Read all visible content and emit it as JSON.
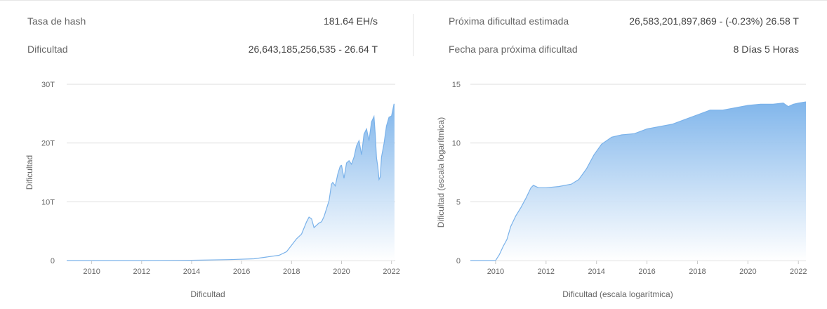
{
  "stats": {
    "hash_rate": {
      "label": "Tasa de hash",
      "value": "181.64 EH/s"
    },
    "difficulty": {
      "label": "Dificultad",
      "value": "26,643,185,256,535 - 26.64 T"
    },
    "next_difficulty": {
      "label": "Próxima dificultad estimada",
      "value": "26,583,201,897,869 - (-0.23%) 26.58 T"
    },
    "next_date": {
      "label": "Fecha para próxima dificultad",
      "value": "8 Días 5 Horas"
    }
  },
  "colors": {
    "area_top": "#7ab2ea",
    "area_bottom": "#ffffff",
    "line": "#7ab2ea",
    "grid": "#dddddd"
  },
  "chart_data": [
    {
      "type": "area",
      "title": "",
      "xlabel": "Dificultad",
      "ylabel": "Dificultad",
      "xlim": [
        2009.0,
        2022.15
      ],
      "ylim": [
        0,
        30
      ],
      "x_ticks": [
        "2010",
        "2012",
        "2014",
        "2016",
        "2018",
        "2020",
        "2022"
      ],
      "y_ticks": [
        "0",
        "10T",
        "20T",
        "30T"
      ],
      "y_tick_values": [
        0,
        10,
        20,
        30
      ],
      "grid": true,
      "x": [
        2009.0,
        2012.0,
        2014.0,
        2015.5,
        2016.5,
        2017.0,
        2017.5,
        2017.8,
        2018.0,
        2018.2,
        2018.4,
        2018.6,
        2018.7,
        2018.8,
        2018.9,
        2019.0,
        2019.1,
        2019.2,
        2019.3,
        2019.5,
        2019.6,
        2019.65,
        2019.75,
        2019.85,
        2019.95,
        2020.0,
        2020.1,
        2020.2,
        2020.3,
        2020.4,
        2020.5,
        2020.6,
        2020.7,
        2020.8,
        2020.9,
        2021.0,
        2021.1,
        2021.2,
        2021.3,
        2021.35,
        2021.4,
        2021.45,
        2021.5,
        2021.55,
        2021.6,
        2021.7,
        2021.8,
        2021.9,
        2022.0,
        2022.1,
        2022.12
      ],
      "series": [
        {
          "values": [
            0,
            0,
            0.05,
            0.15,
            0.3,
            0.6,
            0.9,
            1.5,
            2.6,
            3.7,
            4.5,
            6.6,
            7.4,
            7.1,
            5.6,
            6.0,
            6.4,
            6.6,
            7.5,
            10.2,
            13.0,
            13.3,
            12.7,
            14.7,
            16.1,
            16.2,
            14.0,
            16.6,
            17.0,
            16.4,
            17.6,
            19.5,
            20.4,
            18.0,
            21.5,
            22.4,
            20.4,
            23.6,
            24.5,
            21.5,
            17.5,
            16.0,
            13.8,
            14.2,
            17.6,
            19.9,
            22.9,
            24.4,
            24.6,
            26.6,
            26.6
          ]
        }
      ]
    },
    {
      "type": "area",
      "title": "",
      "xlabel": "Dificultad (escala logarítmica)",
      "ylabel": "Dificultad (escala logarítmica)",
      "xlim": [
        2009.0,
        2022.3
      ],
      "ylim": [
        0,
        15
      ],
      "x_ticks": [
        "2010",
        "2012",
        "2014",
        "2016",
        "2018",
        "2020",
        "2022"
      ],
      "y_ticks": [
        "0",
        "5",
        "10",
        "15"
      ],
      "y_tick_values": [
        0,
        5,
        10,
        15
      ],
      "grid": true,
      "x": [
        2009.0,
        2010.0,
        2010.15,
        2010.3,
        2010.45,
        2010.6,
        2010.8,
        2011.0,
        2011.2,
        2011.4,
        2011.5,
        2011.7,
        2012.0,
        2012.5,
        2013.0,
        2013.3,
        2013.6,
        2013.9,
        2014.2,
        2014.6,
        2015.0,
        2015.5,
        2016.0,
        2016.5,
        2017.0,
        2017.5,
        2018.0,
        2018.5,
        2019.0,
        2019.5,
        2020.0,
        2020.5,
        2021.0,
        2021.4,
        2021.6,
        2021.8,
        2022.0,
        2022.3
      ],
      "series": [
        {
          "values": [
            0,
            0,
            0.5,
            1.2,
            1.8,
            2.9,
            3.8,
            4.5,
            5.3,
            6.2,
            6.4,
            6.2,
            6.2,
            6.3,
            6.5,
            6.9,
            7.8,
            9.0,
            9.9,
            10.5,
            10.7,
            10.8,
            11.2,
            11.4,
            11.6,
            12.0,
            12.4,
            12.8,
            12.8,
            13.0,
            13.2,
            13.3,
            13.3,
            13.4,
            13.1,
            13.3,
            13.4,
            13.5
          ]
        }
      ]
    }
  ]
}
